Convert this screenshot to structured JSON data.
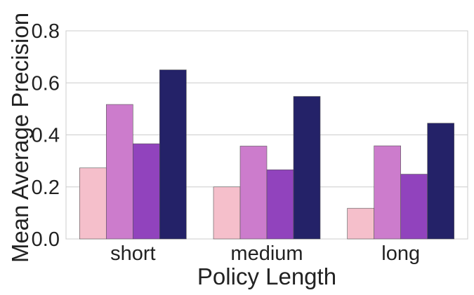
{
  "chart_data": {
    "type": "bar",
    "title": "",
    "xlabel": "Policy Length",
    "ylabel": "Mean Average Precision",
    "categories": [
      "short",
      "medium",
      "long"
    ],
    "ylim": [
      0,
      0.8
    ],
    "yticks": [
      "0.0",
      "0.2",
      "0.4",
      "0.6",
      "0.8"
    ],
    "grid": "horizontal",
    "legend": "none",
    "series": [
      {
        "color": "#f5bfcb",
        "values": [
          0.273,
          0.2,
          0.118
        ]
      },
      {
        "color": "#cc7ccc",
        "values": [
          0.517,
          0.357,
          0.358
        ]
      },
      {
        "color": "#9143bd",
        "values": [
          0.366,
          0.266,
          0.249
        ]
      },
      {
        "color": "#242268",
        "values": [
          0.65,
          0.548,
          0.445
        ]
      }
    ]
  }
}
